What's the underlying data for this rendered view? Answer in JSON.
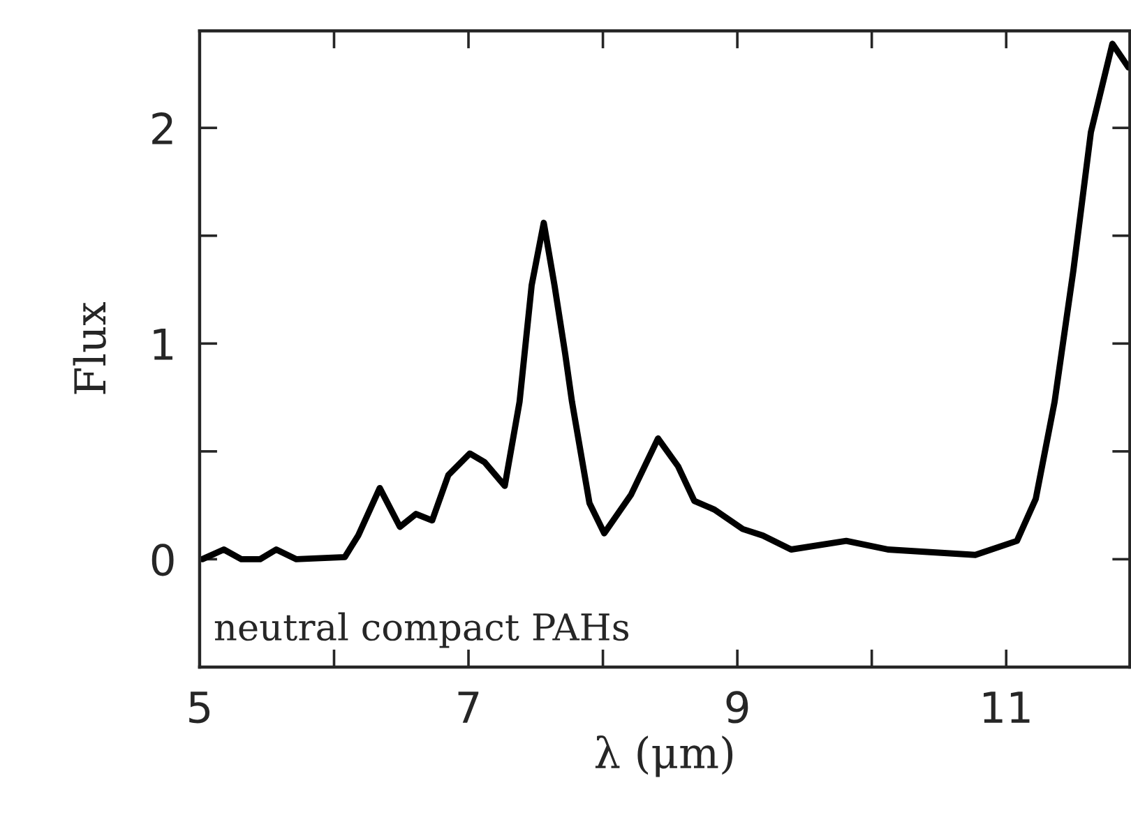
{
  "chart_data": {
    "type": "line",
    "xlabel": "λ (μm)",
    "ylabel": "Flux",
    "annotations": [
      "neutral compact PAHs"
    ],
    "x": [
      5.02,
      5.18,
      5.31,
      5.45,
      5.57,
      5.72,
      6.08,
      6.18,
      6.34,
      6.49,
      6.61,
      6.73,
      6.85,
      7.01,
      7.12,
      7.27,
      7.38,
      7.47,
      7.56,
      7.64,
      7.72,
      7.77,
      7.9,
      8.01,
      8.21,
      8.41,
      8.56,
      8.68,
      8.83,
      9.04,
      9.19,
      9.4,
      9.81,
      10.12,
      10.77,
      11.08,
      11.22,
      11.36,
      11.5,
      11.63,
      11.79,
      11.91
    ],
    "series": [
      {
        "color": "#000000",
        "values": [
          0,
          0.045,
          0,
          0,
          0.045,
          0,
          0.01,
          0.11,
          0.33,
          0.15,
          0.21,
          0.18,
          0.39,
          0.49,
          0.45,
          0.34,
          0.73,
          1.27,
          1.56,
          1.27,
          0.95,
          0.73,
          0.26,
          0.12,
          0.3,
          0.56,
          0.43,
          0.27,
          0.23,
          0.14,
          0.11,
          0.045,
          0.085,
          0.045,
          0.02,
          0.085,
          0.28,
          0.73,
          1.34,
          1.98,
          2.39,
          2.28
        ]
      }
    ],
    "xlim": [
      5,
      11.92
    ],
    "ylim": [
      -0.5,
      2.45
    ],
    "xticks": [
      5,
      {
        "value": 6,
        "label": null
      },
      7,
      {
        "value": 8,
        "label": null
      },
      9,
      {
        "value": 10,
        "label": null
      },
      11
    ],
    "yticks": [
      {
        "value": -0.5,
        "label": null
      },
      0,
      {
        "value": 0.5,
        "label": null
      },
      1,
      {
        "value": 1.5,
        "label": null
      },
      2
    ],
    "grid": false,
    "legend": false,
    "marker": "none",
    "line_style": "solid"
  }
}
